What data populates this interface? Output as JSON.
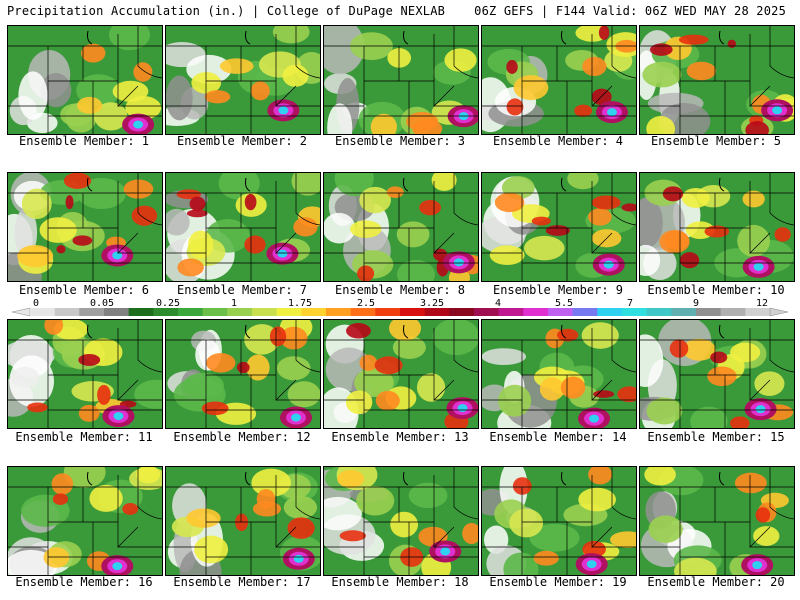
{
  "header": {
    "left": "Precipitation Accumulation (in.) | College of DuPage NEXLAB",
    "right": "06Z GEFS | F144 Valid: 06Z WED MAY 28 2025"
  },
  "legend": {
    "labels": [
      "0",
      "0.05",
      "0.25",
      "1",
      "1.75",
      "2.5",
      "3.25",
      "4",
      "5.5",
      "7",
      "9",
      "12"
    ],
    "colors": [
      "#e6e6e6",
      "#c8c8c8",
      "#a0a0a0",
      "#828282",
      "#1e6e1e",
      "#2e8b2e",
      "#3ca83c",
      "#6cc04a",
      "#9ad050",
      "#c8e050",
      "#f0f040",
      "#ffd230",
      "#ffa020",
      "#ff7018",
      "#f04010",
      "#d81010",
      "#b00818",
      "#8a0820",
      "#a01050",
      "#c01890",
      "#e030d0",
      "#c060f0",
      "#7878f0",
      "#30d0f0",
      "#30e0e0",
      "#40c8c8",
      "#60b0b0",
      "#909090",
      "#b0b0b0",
      "#d0d0d0"
    ]
  },
  "members": [
    {
      "label": "Ensemble Member: 1"
    },
    {
      "label": "Ensemble Member: 2"
    },
    {
      "label": "Ensemble Member: 3"
    },
    {
      "label": "Ensemble Member: 4"
    },
    {
      "label": "Ensemble Member: 5"
    },
    {
      "label": "Ensemble Member: 6"
    },
    {
      "label": "Ensemble Member: 7"
    },
    {
      "label": "Ensemble Member: 8"
    },
    {
      "label": "Ensemble Member: 9"
    },
    {
      "label": "Ensemble Member: 10"
    },
    {
      "label": "Ensemble Member: 11"
    },
    {
      "label": "Ensemble Member: 12"
    },
    {
      "label": "Ensemble Member: 13"
    },
    {
      "label": "Ensemble Member: 14"
    },
    {
      "label": "Ensemble Member: 15"
    },
    {
      "label": "Ensemble Member: 16"
    },
    {
      "label": "Ensemble Member: 17"
    },
    {
      "label": "Ensemble Member: 18"
    },
    {
      "label": "Ensemble Member: 19"
    },
    {
      "label": "Ensemble Member: 20"
    }
  ]
}
